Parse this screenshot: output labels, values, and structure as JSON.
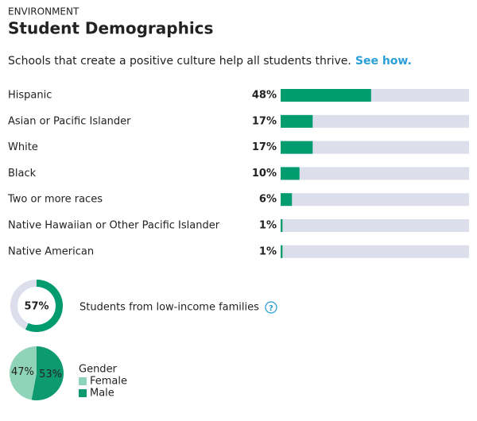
{
  "section": "ENVIRONMENT",
  "title": "Student Demographics",
  "intro": "Schools that create a positive culture help all students thrive.",
  "link": "See how.",
  "help_icon": "?",
  "chart_data": [
    {
      "type": "bar",
      "categories": [
        "Hispanic",
        "Asian or Pacific Islander",
        "White",
        "Black",
        "Two or more races",
        "Native Hawaiian or Other Pacific Islander",
        "Native American"
      ],
      "values": [
        48,
        17,
        17,
        10,
        6,
        1,
        1
      ],
      "value_labels": [
        "48%",
        "17%",
        "17%",
        "10%",
        "6%",
        "1%",
        "1%"
      ],
      "color": "#009b6e",
      "track_color": "#dcdeeb",
      "xlim": [
        0,
        100
      ]
    },
    {
      "type": "donut",
      "label": "Students from low-income families",
      "values": [
        57
      ],
      "value_labels": [
        "57%"
      ],
      "color": "#009b6e",
      "track_color": "#dcdeeb",
      "lim": [
        0,
        100
      ]
    },
    {
      "type": "pie",
      "title": "Gender",
      "categories": [
        "Female",
        "Male"
      ],
      "values": [
        47,
        53
      ],
      "value_labels": [
        "47%",
        "53%"
      ],
      "colors": [
        "#8fd3b8",
        "#0c9a6e"
      ]
    }
  ]
}
